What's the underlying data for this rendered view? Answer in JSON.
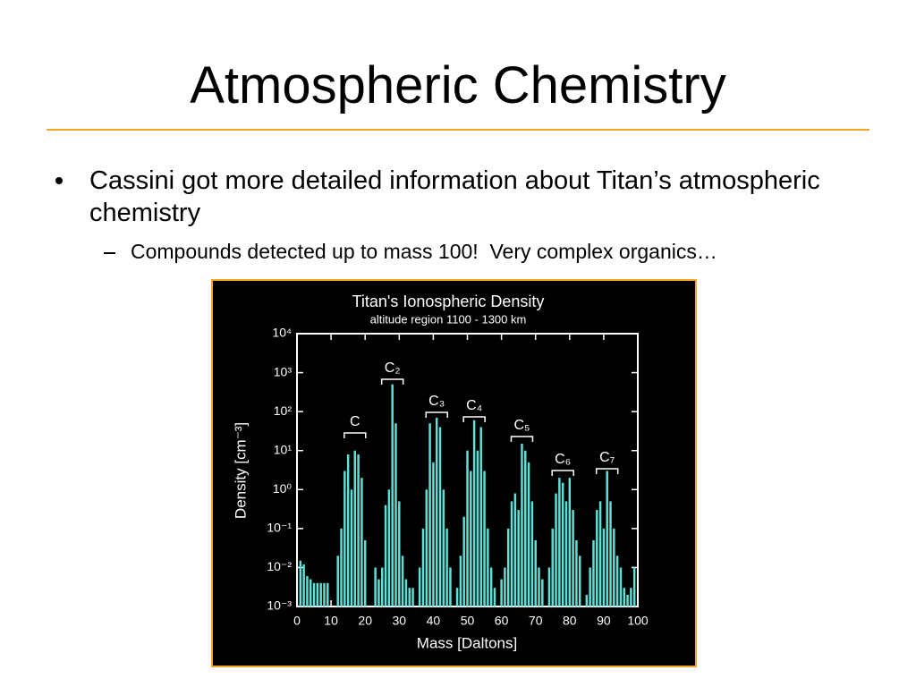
{
  "slide": {
    "title": "Atmospheric Chemistry",
    "bullet": "Cassini got more detailed information about Titan’s atmospheric chemistry",
    "sub_bullet": "Compounds detected up to mass 100!  Very complex organics…"
  },
  "chart_data": {
    "type": "bar",
    "title": "Titan's Ionospheric Density",
    "subtitle": "altitude region 1100 - 1300 km",
    "x_label": "Mass [Daltons]",
    "y_label": "Density [cm⁻³]",
    "log_y": true,
    "color": "#5ee0d6",
    "annotations": [
      "C",
      "C₂",
      "C₃",
      "C₄",
      "C₅",
      "C₆",
      "C₇"
    ],
    "x": [
      1,
      2,
      3,
      4,
      5,
      6,
      7,
      8,
      9,
      12,
      13,
      14,
      15,
      16,
      17,
      18,
      19,
      20,
      23,
      24,
      25,
      26,
      27,
      28,
      29,
      30,
      31,
      32,
      33,
      34,
      36,
      37,
      38,
      39,
      40,
      41,
      42,
      43,
      44,
      45,
      47,
      48,
      49,
      50,
      51,
      52,
      53,
      54,
      55,
      56,
      57,
      58,
      60,
      61,
      62,
      63,
      64,
      65,
      66,
      67,
      68,
      69,
      70,
      71,
      72,
      74,
      75,
      76,
      77,
      78,
      79,
      80,
      81,
      82,
      83,
      85,
      86,
      87,
      88,
      89,
      90,
      91,
      92,
      93,
      94,
      95,
      96,
      97,
      98,
      99
    ],
    "values": [
      0.015,
      0.012,
      0.006,
      0.005,
      0.004,
      0.004,
      0.004,
      0.004,
      0.004,
      0.02,
      0.1,
      3,
      8,
      1,
      10,
      8,
      2,
      0.05,
      0.01,
      0.005,
      0.01,
      0.4,
      1,
      500,
      50,
      0.5,
      0.02,
      0.005,
      0.003,
      0.003,
      0.01,
      0.1,
      1,
      50,
      5,
      70,
      40,
      1,
      0.1,
      0.01,
      0.003,
      0.02,
      0.2,
      10,
      3,
      60,
      10,
      40,
      3,
      0.1,
      0.01,
      0.003,
      0.005,
      0.01,
      0.1,
      0.5,
      0.8,
      0.3,
      15,
      10,
      5,
      0.5,
      0.05,
      0.01,
      0.005,
      0.01,
      0.1,
      0.8,
      2,
      1.5,
      0.5,
      2,
      0.3,
      0.05,
      0.02,
      0.002,
      0.01,
      0.05,
      0.3,
      0.5,
      0.1,
      3,
      0.5,
      0.1,
      0.02,
      0.01,
      0.003,
      0.002,
      0.003,
      0.01
    ],
    "xlim": [
      0,
      100
    ],
    "xticks": [
      0,
      10,
      20,
      30,
      40,
      50,
      60,
      70,
      80,
      90,
      100
    ],
    "ylim": [
      0.001,
      10000
    ],
    "yticks": [
      {
        "value": 0.001,
        "label": "10⁻³"
      },
      {
        "value": 0.01,
        "label": "10⁻²"
      },
      {
        "value": 0.1,
        "label": "10⁻¹"
      },
      {
        "value": 1,
        "label": "10⁰"
      },
      {
        "value": 10,
        "label": "10¹"
      },
      {
        "value": 100,
        "label": "10²"
      },
      {
        "value": 1000,
        "label": "10³"
      },
      {
        "value": 10000,
        "label": "10⁴"
      }
    ]
  }
}
